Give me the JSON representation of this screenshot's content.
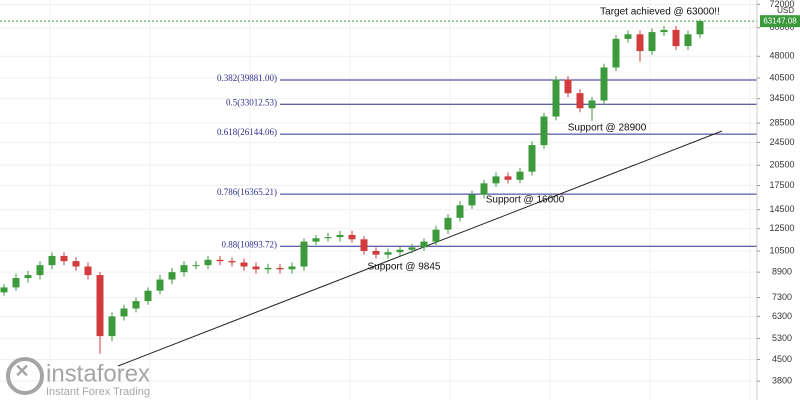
{
  "chart_data": {
    "type": "candlestick",
    "yscale": "log",
    "ylim": [
      3280,
      74500
    ],
    "yticks": [
      3800,
      4500,
      5300,
      6300,
      7300,
      8900,
      10500,
      12500,
      14500,
      17500,
      20500,
      24500,
      28500,
      34500,
      40500,
      48000,
      60000,
      72000
    ],
    "y_unit": "USD",
    "grid": true,
    "up_color": "#3c9a3c",
    "down_color": "#d23c3c",
    "open": [
      7600,
      7900,
      8500,
      8700,
      9400,
      10100,
      9700,
      9300,
      8700,
      5400,
      6300,
      6700,
      7100,
      7700,
      8400,
      8900,
      9400,
      9400,
      9800,
      9700,
      9600,
      9300,
      9100,
      9200,
      9100,
      9300,
      11300,
      11600,
      11700,
      11900,
      11500,
      10500,
      10200,
      10400,
      10600,
      10800,
      11300,
      12400,
      13600,
      15000,
      16300,
      17800,
      18800,
      18300,
      19500,
      24000,
      30000,
      40000,
      36000,
      32000,
      34000,
      44000,
      55000,
      57000,
      50000,
      58000,
      59000,
      52000,
      57000
    ],
    "high": [
      8100,
      8800,
      9000,
      9700,
      10400,
      10400,
      10000,
      9600,
      8900,
      6500,
      6900,
      7300,
      7900,
      8700,
      9200,
      9700,
      9700,
      10100,
      10100,
      10000,
      9900,
      9600,
      9500,
      9500,
      9600,
      11600,
      11900,
      12100,
      12300,
      12300,
      11800,
      10800,
      10700,
      10900,
      11100,
      11600,
      12800,
      14000,
      15500,
      16800,
      18300,
      19400,
      19400,
      20100,
      24700,
      30900,
      41200,
      41200,
      37100,
      35000,
      45300,
      56700,
      58700,
      58700,
      59700,
      60800,
      60800,
      58700,
      64000
    ],
    "low": [
      7400,
      7700,
      8200,
      8400,
      9100,
      9400,
      9000,
      8400,
      4700,
      5200,
      6100,
      6500,
      6900,
      7500,
      8100,
      8600,
      9100,
      9100,
      9400,
      9300,
      9000,
      8800,
      8800,
      8800,
      8800,
      9000,
      11000,
      11300,
      11300,
      11200,
      10200,
      9900,
      9900,
      10100,
      10300,
      10500,
      11000,
      12000,
      13200,
      14600,
      15800,
      17300,
      17800,
      17800,
      18900,
      23300,
      29100,
      34900,
      31000,
      29000,
      33000,
      42700,
      53400,
      46000,
      48500,
      56300,
      50400,
      50400,
      55300
    ],
    "close": [
      7900,
      8500,
      8700,
      9400,
      10100,
      9700,
      9300,
      8700,
      5400,
      6300,
      6700,
      7100,
      7700,
      8400,
      8900,
      9400,
      9400,
      9800,
      9700,
      9600,
      9300,
      9100,
      9200,
      9100,
      9300,
      11300,
      11600,
      11700,
      11900,
      11500,
      10500,
      10200,
      10400,
      10600,
      10800,
      11300,
      12400,
      13600,
      15000,
      16300,
      17800,
      18800,
      18300,
      19500,
      24000,
      30000,
      40000,
      36000,
      32000,
      34000,
      44000,
      55000,
      57000,
      50000,
      58000,
      59000,
      52000,
      57000,
      63147.08
    ],
    "last_price": 63147.08,
    "last_price_color": "#3c9a3c",
    "levels": [
      {
        "label": "0.382(39881.00)",
        "value": 39881
      },
      {
        "label": "0.5(33012.53)",
        "value": 33012.53
      },
      {
        "label": "0.618(26144.06)",
        "value": 26144.06
      },
      {
        "label": "0.786(16365.21)",
        "value": 16365.21
      },
      {
        "label": "0.88(10893.72)",
        "value": 10893.72
      }
    ],
    "level_color": "#2f2f8f",
    "annotations": [
      "Target achieved @ 63000!!",
      "Support @ 28900",
      "Support @ 16000",
      "Support @ 9845"
    ]
  },
  "logo": {
    "name": "instaforex",
    "tagline": "Instant Forex Trading"
  }
}
